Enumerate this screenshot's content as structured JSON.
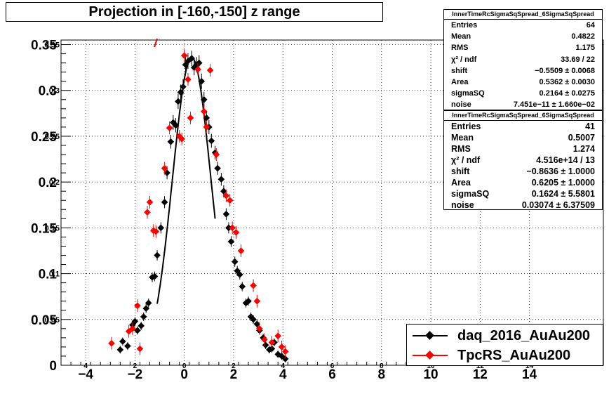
{
  "title": "Projection in [-160,-150] z range",
  "colors": {
    "daq": "#000000",
    "tpc": "#ff0000",
    "grid": "#000000",
    "background": "#ffffff"
  },
  "stats": [
    {
      "header": "InnerTimeRcSigmaSqSpread_6SigmaSqSpread",
      "rows": [
        {
          "label": "Entries",
          "value": "64"
        },
        {
          "label": "Mean",
          "value": "0.4822"
        },
        {
          "label": "RMS",
          "value": "1.175"
        },
        {
          "label": "χ² / ndf",
          "value": "33.69 / 22"
        },
        {
          "label": "shift",
          "value": "−0.5509 ± 0.0068"
        },
        {
          "label": "Area",
          "value": "0.5362 ± 0.0030"
        },
        {
          "label": "sigmaSQ",
          "value": "0.2164 ± 0.0275"
        },
        {
          "label": "noise",
          "value": "7.451e−11 ± 1.660e−02"
        }
      ]
    },
    {
      "header": "InnerTimeRcSigmaSqSpread_6SigmaSqSpread",
      "rows": [
        {
          "label": "Entries",
          "value": "41"
        },
        {
          "label": "Mean",
          "value": "0.5007"
        },
        {
          "label": "RMS",
          "value": "1.274"
        },
        {
          "label": "χ² / ndf",
          "value": "4.516e+14 / 13"
        },
        {
          "label": "shift",
          "value": "−0.8636 ± 1.0000"
        },
        {
          "label": "Area",
          "value": "0.6205 ± 1.0000"
        },
        {
          "label": "sigmaSQ",
          "value": "0.1624 ± 5.5801"
        },
        {
          "label": "noise",
          "value": "0.03074 ± 6.37509"
        }
      ]
    }
  ],
  "legend": [
    {
      "label": "daq_2016_AuAu200",
      "color": "#000000"
    },
    {
      "label": "TpcRS_AuAu200",
      "color": "#ff0000"
    }
  ],
  "chart_data": {
    "type": "scatter",
    "title": "Projection in [-160,-150] z range",
    "xlim": [
      -5,
      17
    ],
    "ylim": [
      0,
      0.355
    ],
    "grid": true,
    "legend_position": "bottom-right",
    "x_ticks": [
      "−4",
      "−2",
      "0",
      "2",
      "4",
      "6",
      "8",
      "10",
      "12",
      "14"
    ],
    "x_tick_values": [
      -4,
      -2,
      0,
      2,
      4,
      6,
      8,
      10,
      12,
      14
    ],
    "x_small_ticks": [
      "4",
      "2",
      "0",
      "2",
      "4",
      "6",
      "8",
      "10",
      "12",
      "14"
    ],
    "y_ticks": [
      "0",
      "0.05",
      "0.1",
      "0.15",
      "0.2",
      "0.25",
      "0.3",
      "0.35"
    ],
    "y_tick_values": [
      0,
      0.05,
      0.1,
      0.15,
      0.2,
      0.25,
      0.3,
      0.35
    ],
    "y_small_ticks": [
      "",
      "0.05",
      "0.1",
      "0.15",
      "0.2",
      "0.25",
      "0.3",
      "0.35"
    ],
    "series": [
      {
        "name": "daq_2016_AuAu200",
        "color": "#000000",
        "points": [
          [
            -2.6,
            0.017
          ],
          [
            -2.5,
            0.026
          ],
          [
            -2.3,
            0.021
          ],
          [
            -2.1,
            0.044
          ],
          [
            -2.0,
            0.048
          ],
          [
            -1.9,
            0.038
          ],
          [
            -1.75,
            0.043
          ],
          [
            -1.65,
            0.053
          ],
          [
            -1.55,
            0.062
          ],
          [
            -1.45,
            0.068
          ],
          [
            -1.3,
            0.096
          ],
          [
            -1.2,
            0.097
          ],
          [
            -1.1,
            0.12
          ],
          [
            -0.95,
            0.15
          ],
          [
            -0.8,
            0.178
          ],
          [
            -0.7,
            0.21
          ],
          [
            -0.55,
            0.244
          ],
          [
            -0.45,
            0.265
          ],
          [
            -0.35,
            0.262
          ],
          [
            -0.25,
            0.288
          ],
          [
            -0.15,
            0.298
          ],
          [
            -0.05,
            0.304
          ],
          [
            0.05,
            0.328
          ],
          [
            0.15,
            0.332
          ],
          [
            0.3,
            0.335
          ],
          [
            0.4,
            0.325
          ],
          [
            0.5,
            0.328
          ],
          [
            0.6,
            0.33
          ],
          [
            0.7,
            0.31
          ],
          [
            0.8,
            0.29
          ],
          [
            0.9,
            0.27
          ],
          [
            1.0,
            0.26
          ],
          [
            1.1,
            0.245
          ],
          [
            1.25,
            0.232
          ],
          [
            1.35,
            0.215
          ],
          [
            1.5,
            0.203
          ],
          [
            1.6,
            0.19
          ],
          [
            1.7,
            0.165
          ],
          [
            1.8,
            0.15
          ],
          [
            1.9,
            0.135
          ],
          [
            2.05,
            0.113
          ],
          [
            2.15,
            0.103
          ],
          [
            2.25,
            0.099
          ],
          [
            2.35,
            0.086
          ],
          [
            2.5,
            0.068
          ],
          [
            2.6,
            0.07
          ],
          [
            2.7,
            0.053
          ],
          [
            2.8,
            0.05
          ],
          [
            2.95,
            0.045
          ],
          [
            3.05,
            0.038
          ],
          [
            3.2,
            0.03
          ],
          [
            3.3,
            0.022
          ],
          [
            3.45,
            0.017
          ],
          [
            3.55,
            0.018
          ],
          [
            3.65,
            0.025
          ],
          [
            3.8,
            0.012
          ],
          [
            3.95,
            0.01
          ],
          [
            4.1,
            0.007
          ]
        ]
      },
      {
        "name": "TpcRS_AuAu200",
        "color": "#ff0000",
        "points": [
          [
            -2.95,
            0.024
          ],
          [
            -2.25,
            0.037
          ],
          [
            -2.1,
            0.04
          ],
          [
            -1.9,
            0.065
          ],
          [
            -1.8,
            0.018
          ],
          [
            -1.5,
            0.167
          ],
          [
            -1.4,
            0.178
          ],
          [
            -1.25,
            0.147
          ],
          [
            -1.15,
            0.146
          ],
          [
            -0.8,
            0.215
          ],
          [
            -0.6,
            0.259
          ],
          [
            -0.2,
            0.25
          ],
          [
            -0.1,
            0.247
          ],
          [
            0.0,
            0.338
          ],
          [
            0.15,
            0.312
          ],
          [
            0.25,
            0.27
          ],
          [
            0.55,
            0.323
          ],
          [
            0.8,
            0.277
          ],
          [
            0.9,
            0.26
          ],
          [
            1.05,
            0.322
          ],
          [
            1.3,
            0.23
          ],
          [
            1.7,
            0.185
          ],
          [
            1.85,
            0.18
          ],
          [
            1.95,
            0.15
          ],
          [
            2.1,
            0.145
          ],
          [
            2.3,
            0.125
          ],
          [
            2.8,
            0.087
          ],
          [
            2.95,
            0.07
          ],
          [
            3.05,
            0.04
          ],
          [
            3.25,
            0.028
          ],
          [
            3.55,
            0.025
          ],
          [
            3.8,
            0.032
          ],
          [
            3.95,
            0.02
          ],
          [
            4.1,
            0.015
          ]
        ]
      }
    ],
    "fit_curve": {
      "color": "#000000",
      "model": "gaussian",
      "mean": 0.3,
      "sigma": 0.78,
      "amplitude": 0.336,
      "x_range": [
        -1.1,
        1.25
      ]
    }
  }
}
